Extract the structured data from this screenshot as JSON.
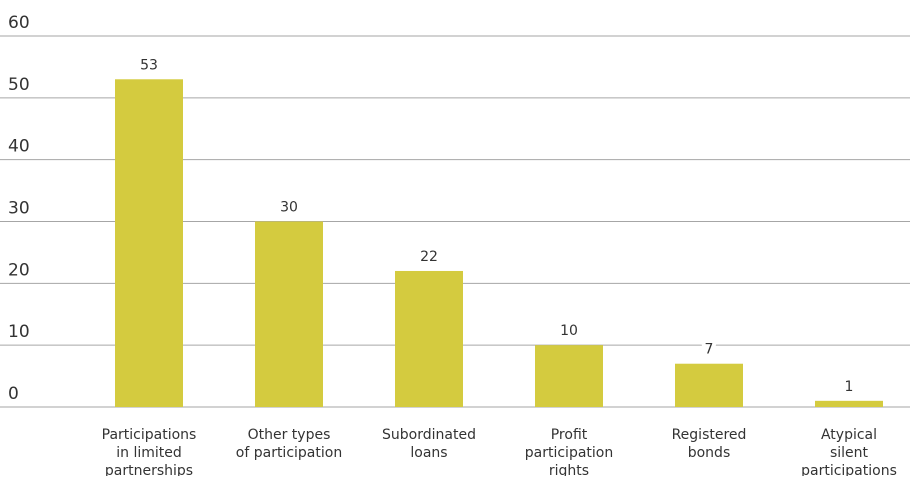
{
  "chart_data": {
    "type": "bar",
    "categories": [
      [
        "Participations",
        "in limited",
        "partnerships"
      ],
      [
        "Other types",
        "of participation"
      ],
      [
        "Subordinated",
        "loans"
      ],
      [
        "Profit",
        "participation",
        "rights"
      ],
      [
        "Registered",
        "bonds"
      ],
      [
        "Atypical",
        "silent",
        "participations"
      ]
    ],
    "values": [
      53,
      30,
      22,
      10,
      7,
      1
    ],
    "data_labels": [
      "53",
      "30",
      "22",
      "10",
      "7",
      "1"
    ],
    "yticks": [
      "0",
      "10",
      "20",
      "30",
      "40",
      "50",
      "60"
    ],
    "ylim": [
      0,
      60
    ],
    "grid": true,
    "bar_color": "#d4cb3f",
    "grid_color": "#a6a6a6",
    "text_color": "#333333"
  }
}
